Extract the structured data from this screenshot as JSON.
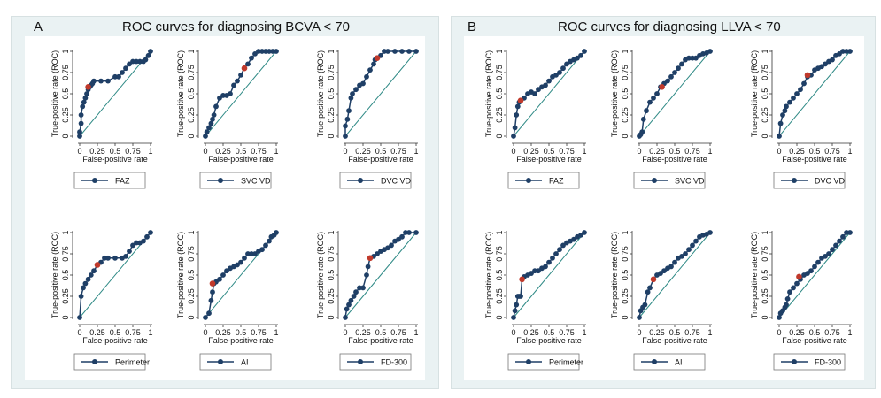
{
  "panels": [
    {
      "letter": "A",
      "title": "ROC curves for diagnosing BCVA < 70"
    },
    {
      "letter": "B",
      "title": "ROC curves for diagnosing LLVA < 70"
    }
  ],
  "colors": {
    "curve": "#1f3f66",
    "marker": "#c0392b",
    "reference": "#2f8a86",
    "frame": "#eaf2f3"
  },
  "chart_data": [
    {
      "type": "line",
      "panel": "A",
      "xlabel": "False-positive rate",
      "ylabel": "True-positive rate (ROC)",
      "xlim": [
        0,
        1
      ],
      "ylim": [
        0,
        1
      ],
      "xticks": [
        "0",
        "0.25",
        "0.5",
        "0.75",
        "1"
      ],
      "yticks": [
        "0",
        "0.25",
        "0.5",
        "0.75",
        "1"
      ],
      "series": [
        {
          "name": "FAZ",
          "x": [
            0,
            0,
            0.02,
            0.02,
            0.04,
            0.06,
            0.08,
            0.1,
            0.12,
            0.14,
            0.16,
            0.18,
            0.2,
            0.3,
            0.4,
            0.5,
            0.55,
            0.6,
            0.65,
            0.7,
            0.75,
            0.8,
            0.85,
            0.9,
            0.93,
            0.97,
            1
          ],
          "y": [
            0,
            0.05,
            0.15,
            0.25,
            0.35,
            0.4,
            0.45,
            0.5,
            0.55,
            0.58,
            0.6,
            0.62,
            0.65,
            0.65,
            0.65,
            0.7,
            0.7,
            0.75,
            0.8,
            0.85,
            0.88,
            0.88,
            0.88,
            0.88,
            0.9,
            0.95,
            1
          ]
        }
      ],
      "cutoff": [
        0.12,
        0.58
      ],
      "legend": "FAZ"
    },
    {
      "type": "line",
      "panel": "A",
      "xlabel": "False-positive rate",
      "ylabel": "True-positive rate (ROC)",
      "xlim": [
        0,
        1
      ],
      "ylim": [
        0,
        1
      ],
      "xticks": [
        "0",
        "0.25",
        "0.5",
        "0.75",
        "1"
      ],
      "yticks": [
        "0",
        "0.25",
        "0.5",
        "0.75",
        "1"
      ],
      "series": [
        {
          "name": "SVC VD",
          "x": [
            0,
            0.02,
            0.05,
            0.08,
            0.1,
            0.12,
            0.15,
            0.2,
            0.25,
            0.3,
            0.35,
            0.4,
            0.45,
            0.5,
            0.55,
            0.6,
            0.65,
            0.7,
            0.75,
            0.8,
            0.85,
            0.9,
            0.95,
            1
          ],
          "y": [
            0,
            0.05,
            0.1,
            0.15,
            0.2,
            0.25,
            0.35,
            0.45,
            0.48,
            0.48,
            0.5,
            0.6,
            0.65,
            0.72,
            0.8,
            0.85,
            0.92,
            0.97,
            1,
            1,
            1,
            1,
            1,
            1
          ]
        }
      ],
      "cutoff": [
        0.55,
        0.8
      ],
      "legend": "SVC VD"
    },
    {
      "type": "line",
      "panel": "A",
      "xlabel": "False-positive rate",
      "ylabel": "True-positive rate (ROC)",
      "xlim": [
        0,
        1
      ],
      "ylim": [
        0,
        1
      ],
      "xticks": [
        "0",
        "0.25",
        "0.5",
        "0.75",
        "1"
      ],
      "yticks": [
        "0",
        "0.25",
        "0.5",
        "0.75",
        "1"
      ],
      "series": [
        {
          "name": "DVC VD",
          "x": [
            0,
            0,
            0.03,
            0.05,
            0.08,
            0.1,
            0.15,
            0.2,
            0.25,
            0.3,
            0.35,
            0.4,
            0.42,
            0.45,
            0.5,
            0.55,
            0.6,
            0.7,
            0.8,
            0.9,
            1
          ],
          "y": [
            0,
            0.12,
            0.2,
            0.3,
            0.45,
            0.5,
            0.55,
            0.6,
            0.62,
            0.7,
            0.78,
            0.85,
            0.9,
            0.92,
            0.95,
            1,
            1,
            1,
            1,
            1,
            1
          ]
        }
      ],
      "cutoff": [
        0.45,
        0.92
      ],
      "legend": "DVC VD"
    },
    {
      "type": "line",
      "panel": "A",
      "xlabel": "False-positive rate",
      "ylabel": "True-positive rate (ROC)",
      "xlim": [
        0,
        1
      ],
      "ylim": [
        0,
        1
      ],
      "xticks": [
        "0",
        "0.25",
        "0.5",
        "0.75",
        "1"
      ],
      "yticks": [
        "0",
        "0.25",
        "0.5",
        "0.75",
        "1"
      ],
      "series": [
        {
          "name": "Perimeter",
          "x": [
            0,
            0.02,
            0.05,
            0.08,
            0.12,
            0.16,
            0.2,
            0.25,
            0.3,
            0.35,
            0.4,
            0.5,
            0.6,
            0.65,
            0.7,
            0.75,
            0.8,
            0.85,
            0.9,
            0.95,
            1
          ],
          "y": [
            0,
            0.25,
            0.35,
            0.4,
            0.45,
            0.5,
            0.55,
            0.62,
            0.65,
            0.7,
            0.7,
            0.7,
            0.7,
            0.72,
            0.78,
            0.85,
            0.88,
            0.88,
            0.9,
            0.95,
            1
          ]
        }
      ],
      "cutoff": [
        0.25,
        0.62
      ],
      "legend": "Perimeter"
    },
    {
      "type": "line",
      "panel": "A",
      "xlabel": "False-positive rate",
      "ylabel": "True-positive rate (ROC)",
      "xlim": [
        0,
        1
      ],
      "ylim": [
        0,
        1
      ],
      "xticks": [
        "0",
        "0.25",
        "0.5",
        "0.75",
        "1"
      ],
      "yticks": [
        "0",
        "0.25",
        "0.5",
        "0.75",
        "1"
      ],
      "series": [
        {
          "name": "AI",
          "x": [
            0,
            0.05,
            0.08,
            0.1,
            0.12,
            0.15,
            0.2,
            0.25,
            0.3,
            0.35,
            0.4,
            0.45,
            0.5,
            0.55,
            0.6,
            0.65,
            0.7,
            0.75,
            0.8,
            0.85,
            0.9,
            0.93,
            0.97,
            1
          ],
          "y": [
            0,
            0.05,
            0.2,
            0.3,
            0.4,
            0.42,
            0.45,
            0.5,
            0.55,
            0.58,
            0.6,
            0.62,
            0.65,
            0.7,
            0.75,
            0.75,
            0.75,
            0.78,
            0.8,
            0.85,
            0.9,
            0.95,
            0.97,
            1
          ]
        }
      ],
      "cutoff": [
        0.1,
        0.4
      ],
      "legend": "AI"
    },
    {
      "type": "line",
      "panel": "A",
      "xlabel": "False-positive rate",
      "ylabel": "True-positive rate (ROC)",
      "xlim": [
        0,
        1
      ],
      "ylim": [
        0,
        1
      ],
      "xticks": [
        "0",
        "0.25",
        "0.5",
        "0.75",
        "1"
      ],
      "yticks": [
        "0",
        "0.25",
        "0.5",
        "0.75",
        "1"
      ],
      "series": [
        {
          "name": "FD-300",
          "x": [
            0,
            0.02,
            0.05,
            0.08,
            0.12,
            0.15,
            0.2,
            0.25,
            0.3,
            0.32,
            0.35,
            0.4,
            0.45,
            0.5,
            0.55,
            0.6,
            0.65,
            0.7,
            0.75,
            0.8,
            0.85,
            0.9,
            1
          ],
          "y": [
            0,
            0.1,
            0.15,
            0.2,
            0.25,
            0.3,
            0.35,
            0.35,
            0.5,
            0.6,
            0.7,
            0.72,
            0.75,
            0.78,
            0.8,
            0.82,
            0.85,
            0.9,
            0.92,
            0.95,
            1,
            1,
            1
          ]
        }
      ],
      "cutoff": [
        0.35,
        0.7
      ],
      "legend": "FD-300"
    },
    {
      "type": "line",
      "panel": "B",
      "xlabel": "False-positive rate",
      "ylabel": "True-positive rate (ROC)",
      "xlim": [
        0,
        1
      ],
      "ylim": [
        0,
        1
      ],
      "xticks": [
        "0",
        "0.25",
        "0.5",
        "0.75",
        "1"
      ],
      "yticks": [
        "0",
        "0.25",
        "0.5",
        "0.75",
        "1"
      ],
      "series": [
        {
          "name": "FAZ",
          "x": [
            0,
            0.02,
            0.04,
            0.06,
            0.08,
            0.1,
            0.15,
            0.2,
            0.25,
            0.3,
            0.35,
            0.4,
            0.45,
            0.5,
            0.55,
            0.6,
            0.65,
            0.7,
            0.75,
            0.8,
            0.85,
            0.9,
            0.95,
            1
          ],
          "y": [
            0,
            0.1,
            0.25,
            0.35,
            0.4,
            0.42,
            0.45,
            0.5,
            0.52,
            0.5,
            0.55,
            0.58,
            0.6,
            0.65,
            0.7,
            0.72,
            0.75,
            0.8,
            0.85,
            0.88,
            0.9,
            0.92,
            0.95,
            1
          ]
        }
      ],
      "cutoff": [
        0.1,
        0.42
      ],
      "legend": "FAZ"
    },
    {
      "type": "line",
      "panel": "B",
      "xlabel": "False-positive rate",
      "ylabel": "True-positive rate (ROC)",
      "xlim": [
        0,
        1
      ],
      "ylim": [
        0,
        1
      ],
      "xticks": [
        "0",
        "0.25",
        "0.5",
        "0.75",
        "1"
      ],
      "yticks": [
        "0",
        "0.25",
        "0.5",
        "0.75",
        "1"
      ],
      "series": [
        {
          "name": "SVC VD",
          "x": [
            0,
            0.02,
            0.04,
            0.06,
            0.1,
            0.15,
            0.2,
            0.25,
            0.3,
            0.35,
            0.4,
            0.45,
            0.5,
            0.55,
            0.6,
            0.65,
            0.7,
            0.75,
            0.8,
            0.85,
            0.9,
            0.95,
            1
          ],
          "y": [
            0,
            0.02,
            0.05,
            0.2,
            0.3,
            0.4,
            0.45,
            0.5,
            0.58,
            0.62,
            0.65,
            0.7,
            0.75,
            0.8,
            0.85,
            0.9,
            0.92,
            0.92,
            0.92,
            0.95,
            0.97,
            0.98,
            1
          ]
        }
      ],
      "cutoff": [
        0.32,
        0.58
      ],
      "legend": "SVC VD"
    },
    {
      "type": "line",
      "panel": "B",
      "xlabel": "False-positive rate",
      "ylabel": "True-positive rate (ROC)",
      "xlim": [
        0,
        1
      ],
      "ylim": [
        0,
        1
      ],
      "xticks": [
        "0",
        "0.25",
        "0.5",
        "0.75",
        "1"
      ],
      "yticks": [
        "0",
        "0.25",
        "0.5",
        "0.75",
        "1"
      ],
      "series": [
        {
          "name": "DVC VD",
          "x": [
            0,
            0.02,
            0.05,
            0.08,
            0.1,
            0.15,
            0.2,
            0.25,
            0.3,
            0.35,
            0.4,
            0.45,
            0.5,
            0.55,
            0.6,
            0.65,
            0.7,
            0.75,
            0.8,
            0.85,
            0.9,
            0.95,
            1
          ],
          "y": [
            0,
            0.15,
            0.25,
            0.3,
            0.35,
            0.4,
            0.45,
            0.5,
            0.55,
            0.62,
            0.7,
            0.72,
            0.78,
            0.8,
            0.82,
            0.85,
            0.88,
            0.9,
            0.95,
            0.97,
            1,
            1,
            1
          ]
        }
      ],
      "cutoff": [
        0.4,
        0.72
      ],
      "legend": "DVC VD"
    },
    {
      "type": "line",
      "panel": "B",
      "xlabel": "False-positive rate",
      "ylabel": "True-positive rate (ROC)",
      "xlim": [
        0,
        1
      ],
      "ylim": [
        0,
        1
      ],
      "xticks": [
        "0",
        "0.25",
        "0.5",
        "0.75",
        "1"
      ],
      "yticks": [
        "0",
        "0.25",
        "0.5",
        "0.75",
        "1"
      ],
      "series": [
        {
          "name": "Perimeter",
          "x": [
            0,
            0.02,
            0.04,
            0.06,
            0.08,
            0.1,
            0.12,
            0.15,
            0.2,
            0.25,
            0.3,
            0.35,
            0.4,
            0.45,
            0.5,
            0.55,
            0.6,
            0.65,
            0.7,
            0.75,
            0.8,
            0.85,
            0.9,
            0.95,
            1
          ],
          "y": [
            0,
            0.08,
            0.15,
            0.25,
            0.25,
            0.25,
            0.45,
            0.48,
            0.5,
            0.52,
            0.55,
            0.55,
            0.58,
            0.6,
            0.65,
            0.7,
            0.75,
            0.8,
            0.85,
            0.88,
            0.9,
            0.92,
            0.95,
            0.97,
            1
          ]
        }
      ],
      "cutoff": [
        0.12,
        0.45
      ],
      "legend": "Perimeter"
    },
    {
      "type": "line",
      "panel": "B",
      "xlabel": "False-positive rate",
      "ylabel": "True-positive rate (ROC)",
      "xlim": [
        0,
        1
      ],
      "ylim": [
        0,
        1
      ],
      "xticks": [
        "0",
        "0.25",
        "0.5",
        "0.75",
        "1"
      ],
      "yticks": [
        "0",
        "0.25",
        "0.5",
        "0.75",
        "1"
      ],
      "series": [
        {
          "name": "AI",
          "x": [
            0,
            0.02,
            0.05,
            0.08,
            0.12,
            0.15,
            0.2,
            0.25,
            0.3,
            0.35,
            0.4,
            0.45,
            0.5,
            0.55,
            0.6,
            0.65,
            0.7,
            0.75,
            0.8,
            0.85,
            0.9,
            0.95,
            1
          ],
          "y": [
            0,
            0.08,
            0.12,
            0.15,
            0.3,
            0.35,
            0.45,
            0.5,
            0.52,
            0.55,
            0.58,
            0.6,
            0.65,
            0.7,
            0.72,
            0.75,
            0.8,
            0.85,
            0.9,
            0.95,
            0.97,
            0.98,
            1
          ]
        }
      ],
      "cutoff": [
        0.2,
        0.45
      ],
      "legend": "AI"
    },
    {
      "type": "line",
      "panel": "B",
      "xlabel": "False-positive rate",
      "ylabel": "True-positive rate (ROC)",
      "xlim": [
        0,
        1
      ],
      "ylim": [
        0,
        1
      ],
      "xticks": [
        "0",
        "0.25",
        "0.5",
        "0.75",
        "1"
      ],
      "yticks": [
        "0",
        "0.25",
        "0.5",
        "0.75",
        "1"
      ],
      "series": [
        {
          "name": "FD-300",
          "x": [
            0,
            0.02,
            0.05,
            0.08,
            0.1,
            0.12,
            0.15,
            0.2,
            0.25,
            0.3,
            0.35,
            0.4,
            0.45,
            0.5,
            0.55,
            0.6,
            0.65,
            0.7,
            0.75,
            0.8,
            0.85,
            0.9,
            0.95,
            1
          ],
          "y": [
            0,
            0.05,
            0.08,
            0.12,
            0.15,
            0.22,
            0.3,
            0.35,
            0.4,
            0.45,
            0.5,
            0.52,
            0.55,
            0.6,
            0.65,
            0.7,
            0.72,
            0.75,
            0.8,
            0.85,
            0.9,
            0.95,
            1,
            1
          ]
        }
      ],
      "cutoff": [
        0.28,
        0.48
      ],
      "legend": "FD-300"
    }
  ]
}
